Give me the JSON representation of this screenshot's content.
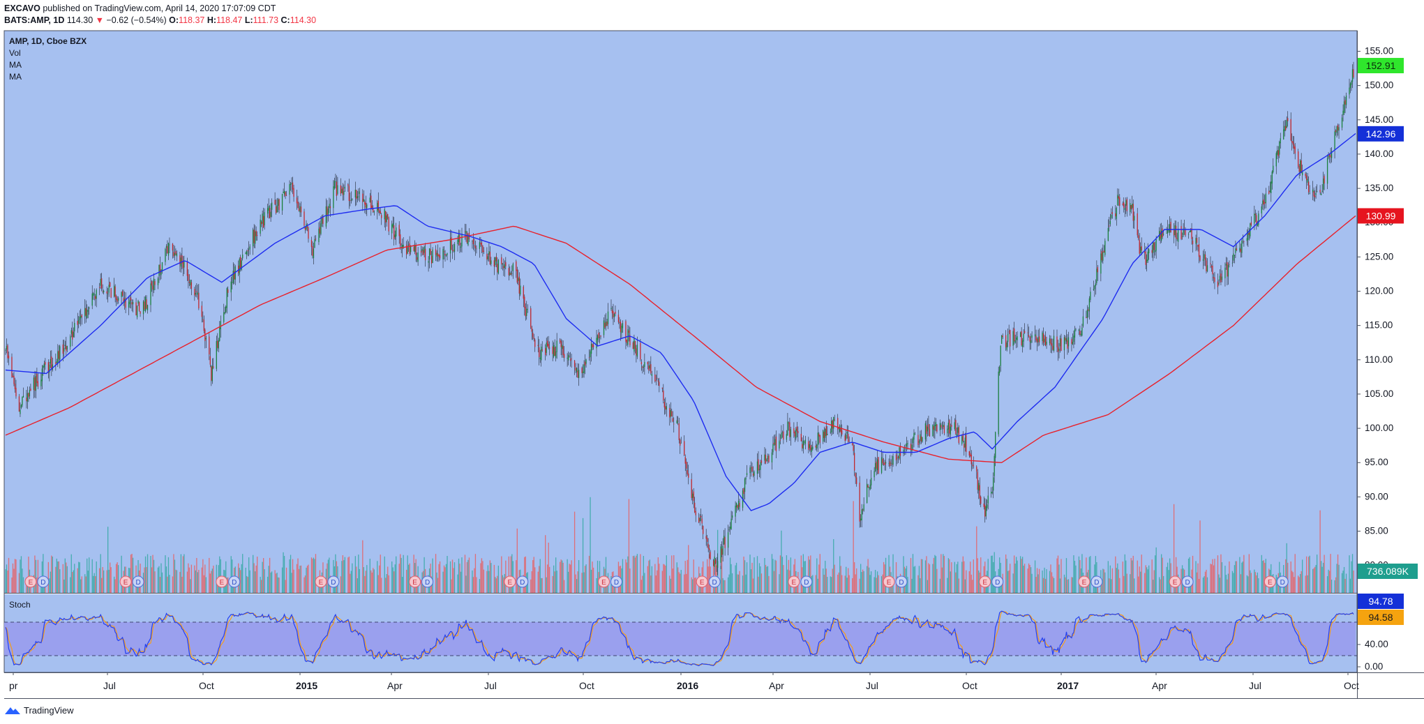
{
  "header": {
    "author": "EXCAVO",
    "published": "published on TradingView.com, April 14, 2020 17:07:09 CDT",
    "symbol": "BATS:AMP, 1D",
    "last": "114.30",
    "change_arrow": "▼",
    "change": "−0.62 (−0.54%)",
    "o_label": "O:",
    "o_value": "118.37",
    "h_label": "H:",
    "h_value": "118.47",
    "l_label": "L:",
    "l_value": "111.73",
    "c_label": "C:",
    "c_value": "114.30"
  },
  "legend": {
    "title": "AMP, 1D, Cboe BZX",
    "vol": "Vol",
    "ma1": "MA",
    "ma2": "MA",
    "stoch": "Stoch"
  },
  "price_axis": {
    "ticks": [
      "155.00",
      "150.00",
      "145.00",
      "140.00",
      "135.00",
      "130.00",
      "125.00",
      "120.00",
      "115.00",
      "110.00",
      "105.00",
      "100.00",
      "95.00",
      "90.00",
      "85.00",
      "80.00"
    ],
    "tick_values": [
      155,
      150,
      145,
      140,
      135,
      130,
      125,
      120,
      115,
      110,
      105,
      100,
      95,
      90,
      85,
      80
    ]
  },
  "badges": {
    "last_price": "152.91",
    "ma_fast": "142.96",
    "ma_slow": "130.99",
    "volume": "736.089K",
    "stoch_k": "94.78",
    "stoch_d": "94.58"
  },
  "stoch_axis": {
    "ticks": [
      "80.00",
      "40.00",
      "0.00"
    ],
    "tick_values": [
      80,
      40,
      0
    ]
  },
  "time_axis": {
    "labels": [
      "pr",
      "Jul",
      "Oct",
      "2015",
      "Apr",
      "Jul",
      "Oct",
      "2016",
      "Apr",
      "Jul",
      "Oct",
      "2017",
      "Apr",
      "Jul",
      "Oct"
    ],
    "bold": [
      false,
      false,
      false,
      true,
      false,
      false,
      false,
      true,
      false,
      false,
      false,
      true,
      false,
      false,
      false
    ]
  },
  "events": {
    "earnings_label": "E",
    "dividend_label": "D"
  },
  "colors": {
    "pane_bg": "#a6c0f0",
    "up": "#1a7f3c",
    "down": "#c0272d",
    "ma_fast": "#1e2cf0",
    "ma_slow": "#e8212b",
    "stoch_band": "#9aa0ee",
    "vol_up": "#26a69a",
    "vol_down": "#ef5350"
  },
  "chart_data": {
    "type": "candlestick",
    "title": "AMP, 1D, Cboe BZX",
    "x_range": [
      "2014-04-01",
      "2017-10-15"
    ],
    "ylim": [
      76,
      158
    ],
    "close_anchors": [
      [
        "2014-04-01",
        112
      ],
      [
        "2014-04-15",
        103
      ],
      [
        "2014-05-01",
        107
      ],
      [
        "2014-06-01",
        113
      ],
      [
        "2014-07-01",
        121
      ],
      [
        "2014-08-10",
        117
      ],
      [
        "2014-09-05",
        127
      ],
      [
        "2014-10-01",
        120
      ],
      [
        "2014-10-15",
        108
      ],
      [
        "2014-11-01",
        121
      ],
      [
        "2014-12-01",
        130
      ],
      [
        "2014-12-31",
        135
      ],
      [
        "2015-01-20",
        126
      ],
      [
        "2015-02-10",
        135
      ],
      [
        "2015-03-01",
        134
      ],
      [
        "2015-03-25",
        132
      ],
      [
        "2015-04-20",
        126
      ],
      [
        "2015-05-15",
        125
      ],
      [
        "2015-06-15",
        128
      ],
      [
        "2015-07-15",
        124
      ],
      [
        "2015-08-01",
        123
      ],
      [
        "2015-08-25",
        111
      ],
      [
        "2015-09-15",
        112
      ],
      [
        "2015-10-01",
        108
      ],
      [
        "2015-10-20",
        113
      ],
      [
        "2015-11-01",
        117
      ],
      [
        "2015-11-20",
        113
      ],
      [
        "2015-12-10",
        108
      ],
      [
        "2016-01-05",
        100
      ],
      [
        "2016-01-20",
        89
      ],
      [
        "2016-02-10",
        80
      ],
      [
        "2016-02-25",
        86
      ],
      [
        "2016-03-15",
        94
      ],
      [
        "2016-04-01",
        96
      ],
      [
        "2016-04-20",
        100
      ],
      [
        "2016-05-10",
        97
      ],
      [
        "2016-06-01",
        101
      ],
      [
        "2016-06-20",
        98
      ],
      [
        "2016-06-27",
        87
      ],
      [
        "2016-07-10",
        94
      ],
      [
        "2016-08-01",
        96
      ],
      [
        "2016-09-01",
        100
      ],
      [
        "2016-09-25",
        100
      ],
      [
        "2016-10-10",
        97
      ],
      [
        "2016-10-24",
        88
      ],
      [
        "2016-11-01",
        90
      ],
      [
        "2016-11-09",
        113
      ],
      [
        "2016-11-25",
        113
      ],
      [
        "2016-12-10",
        114
      ],
      [
        "2017-01-05",
        112
      ],
      [
        "2017-01-25",
        114
      ],
      [
        "2017-02-15",
        126
      ],
      [
        "2017-03-01",
        133
      ],
      [
        "2017-03-15",
        132
      ],
      [
        "2017-03-25",
        124
      ],
      [
        "2017-04-15",
        129
      ],
      [
        "2017-05-10",
        128
      ],
      [
        "2017-05-25",
        124
      ],
      [
        "2017-06-05",
        121
      ],
      [
        "2017-06-25",
        126
      ],
      [
        "2017-07-20",
        133
      ],
      [
        "2017-08-10",
        145
      ],
      [
        "2017-08-25",
        137
      ],
      [
        "2017-09-10",
        133
      ],
      [
        "2017-09-25",
        143
      ],
      [
        "2017-10-15",
        152.9
      ]
    ],
    "ma_fast_anchors": [
      [
        "2014-04-01",
        108.5
      ],
      [
        "2014-05-10",
        108
      ],
      [
        "2014-07-01",
        115
      ],
      [
        "2014-08-15",
        122
      ],
      [
        "2014-09-20",
        124.5
      ],
      [
        "2014-10-25",
        121.3
      ],
      [
        "2014-12-15",
        127
      ],
      [
        "2015-02-01",
        131
      ],
      [
        "2015-03-15",
        132
      ],
      [
        "2015-04-10",
        132.5
      ],
      [
        "2015-05-10",
        129.5
      ],
      [
        "2015-06-20",
        128
      ],
      [
        "2015-07-20",
        126.5
      ],
      [
        "2015-08-20",
        124
      ],
      [
        "2015-09-20",
        116
      ],
      [
        "2015-10-20",
        112
      ],
      [
        "2015-11-20",
        113.5
      ],
      [
        "2015-12-20",
        111
      ],
      [
        "2016-01-20",
        104
      ],
      [
        "2016-02-20",
        93
      ],
      [
        "2016-03-15",
        88
      ],
      [
        "2016-04-01",
        89
      ],
      [
        "2016-04-25",
        92
      ],
      [
        "2016-05-20",
        96.5
      ],
      [
        "2016-06-20",
        98
      ],
      [
        "2016-07-20",
        96.5
      ],
      [
        "2016-08-20",
        96.5
      ],
      [
        "2016-09-20",
        98.5
      ],
      [
        "2016-10-15",
        99.5
      ],
      [
        "2016-11-01",
        97
      ],
      [
        "2016-11-25",
        101
      ],
      [
        "2016-12-31",
        106
      ],
      [
        "2017-02-15",
        116
      ],
      [
        "2017-03-15",
        124
      ],
      [
        "2017-04-15",
        129
      ],
      [
        "2017-05-20",
        129
      ],
      [
        "2017-06-20",
        126.5
      ],
      [
        "2017-07-20",
        131
      ],
      [
        "2017-08-20",
        137
      ],
      [
        "2017-09-20",
        140
      ],
      [
        "2017-10-15",
        143
      ]
    ],
    "ma_slow_anchors": [
      [
        "2014-04-01",
        99
      ],
      [
        "2014-06-01",
        103
      ],
      [
        "2014-08-01",
        108
      ],
      [
        "2014-10-01",
        113
      ],
      [
        "2014-12-01",
        118
      ],
      [
        "2015-02-01",
        122
      ],
      [
        "2015-04-01",
        126
      ],
      [
        "2015-06-01",
        127.5
      ],
      [
        "2015-08-01",
        129.5
      ],
      [
        "2015-09-20",
        127
      ],
      [
        "2015-11-20",
        121
      ],
      [
        "2016-01-20",
        113.5
      ],
      [
        "2016-03-20",
        106
      ],
      [
        "2016-05-20",
        101
      ],
      [
        "2016-07-20",
        98
      ],
      [
        "2016-09-20",
        95.5
      ],
      [
        "2016-11-10",
        95
      ],
      [
        "2016-12-20",
        99
      ],
      [
        "2017-02-20",
        102
      ],
      [
        "2017-04-20",
        108
      ],
      [
        "2017-06-20",
        115
      ],
      [
        "2017-08-20",
        124
      ],
      [
        "2017-10-15",
        131
      ]
    ],
    "stoch": {
      "ylim": [
        0,
        100
      ],
      "band": [
        20,
        80
      ],
      "period_days": 24,
      "range": [
        0,
        100
      ]
    },
    "earnings_dates": [
      "2014-04-25",
      "2014-07-25",
      "2014-10-25",
      "2015-01-28",
      "2015-04-28",
      "2015-07-28",
      "2015-10-26",
      "2016-01-28",
      "2016-04-25",
      "2016-07-25",
      "2016-10-25",
      "2017-01-28",
      "2017-04-25",
      "2017-07-25"
    ],
    "dividend_offset_days": 12
  }
}
